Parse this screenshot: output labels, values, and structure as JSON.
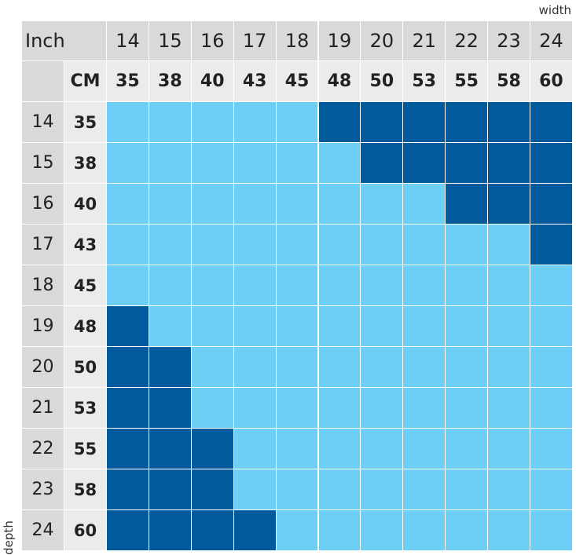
{
  "chart_data": {
    "type": "heatmap",
    "x_axis_word": "width",
    "y_axis_word": "depth",
    "unit_label": "Inch",
    "cm_label": "CM",
    "columns_inch": [
      "14",
      "15",
      "16",
      "17",
      "18",
      "19",
      "20",
      "21",
      "22",
      "23",
      "24"
    ],
    "columns_cm": [
      "35",
      "38",
      "40",
      "43",
      "45",
      "48",
      "50",
      "53",
      "55",
      "58",
      "60"
    ],
    "rows_inch": [
      "14",
      "15",
      "16",
      "17",
      "18",
      "19",
      "20",
      "21",
      "22",
      "23",
      "24"
    ],
    "rows_cm": [
      "35",
      "38",
      "40",
      "43",
      "45",
      "48",
      "50",
      "53",
      "55",
      "58",
      "60"
    ],
    "values": [
      [
        0,
        0,
        0,
        0,
        0,
        1,
        1,
        1,
        1,
        1,
        1
      ],
      [
        0,
        0,
        0,
        0,
        0,
        0,
        1,
        1,
        1,
        1,
        1
      ],
      [
        0,
        0,
        0,
        0,
        0,
        0,
        0,
        0,
        1,
        1,
        1
      ],
      [
        0,
        0,
        0,
        0,
        0,
        0,
        0,
        0,
        0,
        0,
        1
      ],
      [
        0,
        0,
        0,
        0,
        0,
        0,
        0,
        0,
        0,
        0,
        0
      ],
      [
        1,
        0,
        0,
        0,
        0,
        0,
        0,
        0,
        0,
        0,
        0
      ],
      [
        1,
        1,
        0,
        0,
        0,
        0,
        0,
        0,
        0,
        0,
        0
      ],
      [
        1,
        1,
        0,
        0,
        0,
        0,
        0,
        0,
        0,
        0,
        0
      ],
      [
        1,
        1,
        1,
        0,
        0,
        0,
        0,
        0,
        0,
        0,
        0
      ],
      [
        1,
        1,
        1,
        0,
        0,
        0,
        0,
        0,
        0,
        0,
        0
      ],
      [
        1,
        1,
        1,
        1,
        0,
        0,
        0,
        0,
        0,
        0,
        0
      ]
    ],
    "colors": {
      "0": "#6dcff6",
      "1": "#005a9c"
    },
    "header_colors": {
      "inch": "#d9d9d9",
      "cm": "#ebebeb"
    }
  }
}
